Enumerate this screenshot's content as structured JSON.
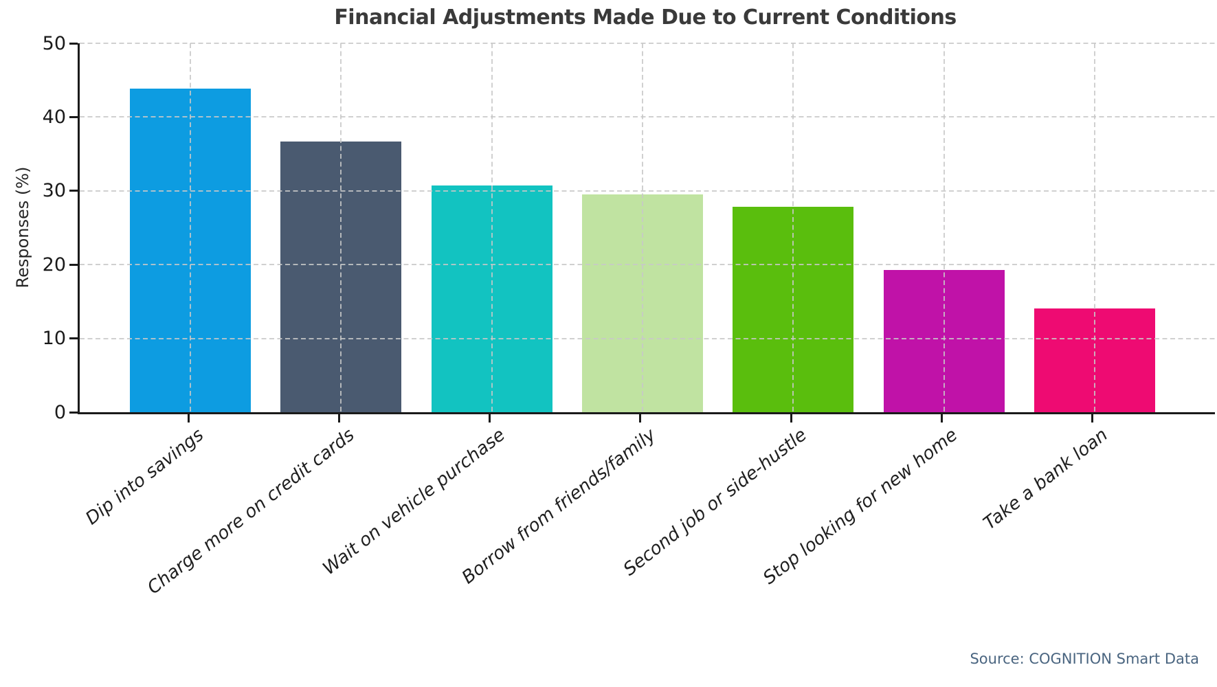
{
  "chart_data": {
    "type": "bar",
    "title": "Financial Adjustments Made Due to Current Conditions",
    "xlabel": "",
    "ylabel": "Responses (%)",
    "categories": [
      "Dip into savings",
      "Charge more on credit cards",
      "Wait on vehicle purchase",
      "Borrow from friends/family",
      "Second job or side-hustle",
      "Stop looking for new home",
      "Take a bank loan"
    ],
    "values": [
      43.9,
      36.7,
      30.7,
      29.5,
      27.8,
      19.3,
      14.1
    ],
    "bar_colors": [
      "#0d9ce1",
      "#4a5a70",
      "#12c3c1",
      "#c0e3a1",
      "#5abe0d",
      "#c012a8",
      "#ee0b72"
    ],
    "ylim": [
      0,
      50
    ],
    "yticks": [
      0,
      10,
      20,
      30,
      40,
      50
    ],
    "grid": "dashed gridlines on both axes, drawn over bars",
    "xtick_rotation_deg": 38,
    "legend": "none"
  },
  "source_note": "Source: COGNITION Smart Data",
  "colors": {
    "background": "#ffffff",
    "title_text": "#3a3a3a",
    "tick_label_text": "#1f1f1f",
    "axis_spine": "#1a1a1a",
    "gridline": "#cccccc",
    "source_text": "#4a6580"
  }
}
